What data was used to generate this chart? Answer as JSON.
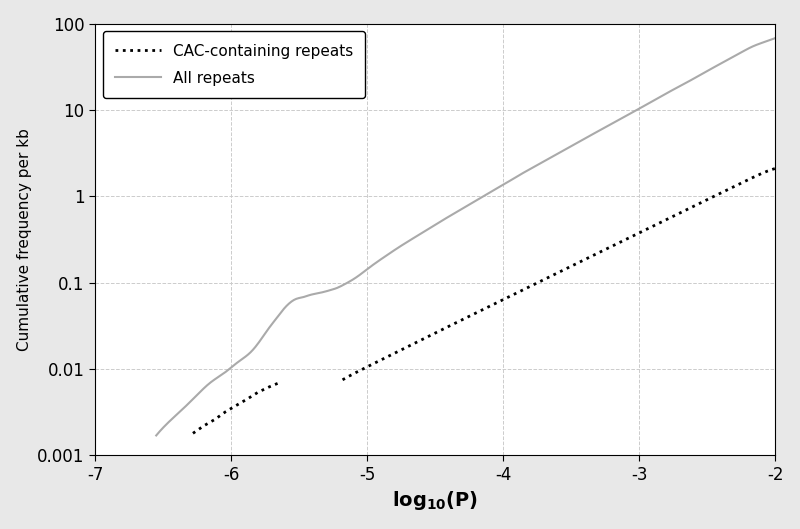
{
  "title": "",
  "xlabel": "$\\mathbf{log_{10}(}$$\\mathbf{P}$$\\mathbf{)}$",
  "ylabel": "Cumulative frequency per kb",
  "xlim": [
    -7,
    -2
  ],
  "ylim_log": [
    -3,
    2
  ],
  "legend_entries": [
    {
      "label": "CAC-containing repeats",
      "color": "black",
      "linestyle": "dotted",
      "linewidth": 2.0
    },
    {
      "label": "All repeats",
      "color": "#aaaaaa",
      "linestyle": "solid",
      "linewidth": 1.5
    }
  ],
  "background_color": "#e8e8e8",
  "plot_bg_color": "#ffffff",
  "grid_color": "#cccccc",
  "yticks": [
    0.001,
    0.01,
    0.1,
    1,
    10,
    100
  ],
  "ytick_labels": [
    "0.001",
    "0.01",
    "0.1",
    "1",
    "10",
    "100"
  ],
  "xticks": [
    -7,
    -6,
    -5,
    -4,
    -3,
    -2
  ],
  "xtick_labels": [
    "-7",
    "-6",
    "-5",
    "-4",
    "-3",
    "-2"
  ],
  "all_points": [
    [
      -6.55,
      0.0017
    ],
    [
      -6.45,
      0.0025
    ],
    [
      -6.35,
      0.0035
    ],
    [
      -6.25,
      0.005
    ],
    [
      -6.15,
      0.007
    ],
    [
      -6.05,
      0.009
    ],
    [
      -5.95,
      0.012
    ],
    [
      -5.85,
      0.016
    ],
    [
      -5.78,
      0.022
    ],
    [
      -5.72,
      0.03
    ],
    [
      -5.67,
      0.038
    ],
    [
      -5.62,
      0.048
    ],
    [
      -5.57,
      0.058
    ],
    [
      -5.52,
      0.065
    ],
    [
      -5.47,
      0.068
    ],
    [
      -5.42,
      0.072
    ],
    [
      -5.37,
      0.075
    ],
    [
      -5.32,
      0.078
    ],
    [
      -5.27,
      0.082
    ],
    [
      -5.22,
      0.087
    ],
    [
      -5.17,
      0.095
    ],
    [
      -5.12,
      0.105
    ],
    [
      -5.07,
      0.118
    ],
    [
      -5.02,
      0.135
    ],
    [
      -4.97,
      0.155
    ],
    [
      -4.87,
      0.2
    ],
    [
      -4.77,
      0.255
    ],
    [
      -4.67,
      0.32
    ],
    [
      -4.57,
      0.4
    ],
    [
      -4.47,
      0.5
    ],
    [
      -4.37,
      0.62
    ],
    [
      -4.27,
      0.77
    ],
    [
      -4.17,
      0.95
    ],
    [
      -4.07,
      1.18
    ],
    [
      -3.97,
      1.45
    ],
    [
      -3.87,
      1.8
    ],
    [
      -3.77,
      2.2
    ],
    [
      -3.67,
      2.7
    ],
    [
      -3.57,
      3.3
    ],
    [
      -3.47,
      4.05
    ],
    [
      -3.37,
      4.95
    ],
    [
      -3.27,
      6.05
    ],
    [
      -3.17,
      7.4
    ],
    [
      -3.07,
      9.0
    ],
    [
      -2.97,
      11.0
    ],
    [
      -2.87,
      13.5
    ],
    [
      -2.77,
      16.5
    ],
    [
      -2.67,
      20.0
    ],
    [
      -2.57,
      24.5
    ],
    [
      -2.47,
      30.0
    ],
    [
      -2.37,
      36.5
    ],
    [
      -2.27,
      44.5
    ],
    [
      -2.17,
      54.0
    ],
    [
      -2.07,
      62.0
    ],
    [
      -2.0,
      68.0
    ]
  ],
  "cac_seg1": [
    [
      -6.28,
      0.0018
    ],
    [
      -6.2,
      0.0022
    ],
    [
      -6.12,
      0.0026
    ],
    [
      -6.04,
      0.0032
    ],
    [
      -5.96,
      0.0038
    ],
    [
      -5.88,
      0.0045
    ],
    [
      -5.8,
      0.0054
    ],
    [
      -5.72,
      0.0062
    ],
    [
      -5.64,
      0.007
    ]
  ],
  "cac_seg2": [
    [
      -5.18,
      0.0075
    ],
    [
      -5.1,
      0.0088
    ],
    [
      -5.02,
      0.0102
    ],
    [
      -4.94,
      0.0118
    ],
    [
      -4.86,
      0.0136
    ],
    [
      -4.78,
      0.0158
    ],
    [
      -4.7,
      0.0182
    ],
    [
      -4.62,
      0.021
    ],
    [
      -4.54,
      0.0242
    ],
    [
      -4.46,
      0.028
    ],
    [
      -4.38,
      0.0323
    ],
    [
      -4.3,
      0.0373
    ],
    [
      -4.22,
      0.043
    ],
    [
      -4.14,
      0.0496
    ],
    [
      -4.06,
      0.0572
    ],
    [
      -3.98,
      0.066
    ],
    [
      -3.9,
      0.076
    ],
    [
      -3.82,
      0.0877
    ],
    [
      -3.74,
      0.1011
    ],
    [
      -3.66,
      0.1166
    ],
    [
      -3.58,
      0.1344
    ],
    [
      -3.5,
      0.155
    ],
    [
      -3.42,
      0.1787
    ],
    [
      -3.34,
      0.206
    ],
    [
      -3.26,
      0.2375
    ],
    [
      -3.18,
      0.2737
    ],
    [
      -3.1,
      0.3155
    ],
    [
      -3.02,
      0.3637
    ],
    [
      -2.94,
      0.4191
    ],
    [
      -2.86,
      0.483
    ],
    [
      -2.78,
      0.5565
    ],
    [
      -2.7,
      0.6414
    ],
    [
      -2.62,
      0.7392
    ],
    [
      -2.54,
      0.8518
    ],
    [
      -2.46,
      0.9815
    ],
    [
      -2.38,
      1.1308
    ],
    [
      -2.3,
      1.3026
    ],
    [
      -2.22,
      1.5
    ],
    [
      -2.14,
      1.72
    ],
    [
      -2.06,
      1.95
    ],
    [
      -2.0,
      2.1
    ]
  ]
}
